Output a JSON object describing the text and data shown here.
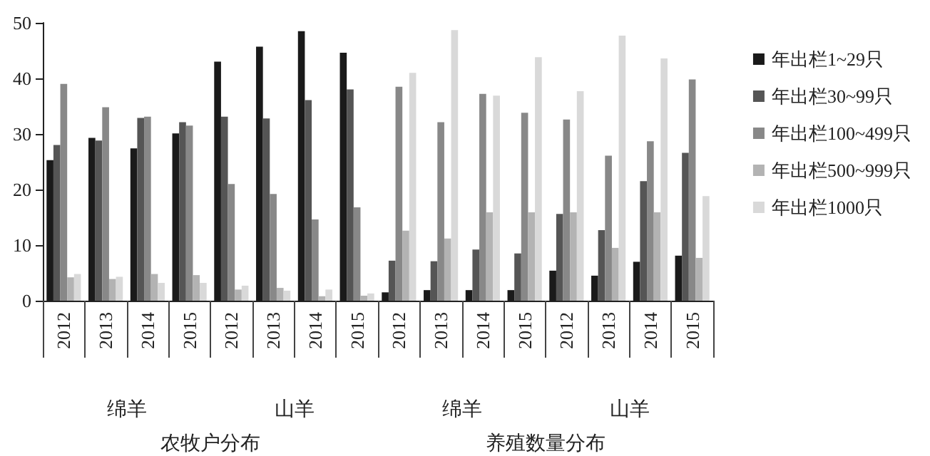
{
  "chart_data": {
    "type": "bar",
    "categories": [
      "2012",
      "2013",
      "2014",
      "2015",
      "2012",
      "2013",
      "2014",
      "2015",
      "2012",
      "2013",
      "2014",
      "2015",
      "2012",
      "2013",
      "2014",
      "2015"
    ],
    "series": [
      {
        "name": "年出栏1~29只",
        "color": "#1a1a1a",
        "values": [
          25.3,
          29.3,
          27.4,
          30.1,
          43,
          45.7,
          48.5,
          44.6,
          1.5,
          1.9,
          1.9,
          1.9,
          5.4,
          4.5,
          7,
          8.1
        ]
      },
      {
        "name": "年出栏30~99只",
        "color": "#555555",
        "values": [
          28,
          28.8,
          32.9,
          32.1,
          33.1,
          32.8,
          36.1,
          38,
          7.2,
          7.1,
          9.2,
          8.5,
          15.6,
          12.7,
          21.5,
          26.6
        ]
      },
      {
        "name": "年出栏100~499只",
        "color": "#888888",
        "values": [
          39,
          34.8,
          33.1,
          31.5,
          21,
          19.2,
          14.6,
          16.8,
          38.5,
          32.1,
          37.2,
          33.8,
          32.6,
          26.1,
          28.7,
          39.8
        ]
      },
      {
        "name": "年出栏500~999只",
        "color": "#b3b3b3",
        "values": [
          4.2,
          3.9,
          4.8,
          4.6,
          2,
          2.3,
          0.8,
          0.9,
          12.6,
          11.2,
          15.9,
          15.9,
          15.9,
          9.5,
          15.9,
          7.7
        ]
      },
      {
        "name": "年出栏1000只",
        "color": "#d9d9d9",
        "values": [
          4.8,
          4.3,
          3.2,
          3.2,
          2.7,
          1.8,
          2,
          1.3,
          41,
          48.7,
          36.9,
          43.8,
          37.7,
          47.7,
          43.6,
          18.8
        ]
      }
    ],
    "ylim": [
      0,
      50
    ],
    "yticks": [
      0,
      10,
      20,
      30,
      40,
      50
    ],
    "grid": false,
    "legend": "right",
    "annotations": [
      "绵羊",
      "山羊",
      "绵羊",
      "山羊",
      "农牧户分布",
      "养殖数量分布"
    ]
  }
}
